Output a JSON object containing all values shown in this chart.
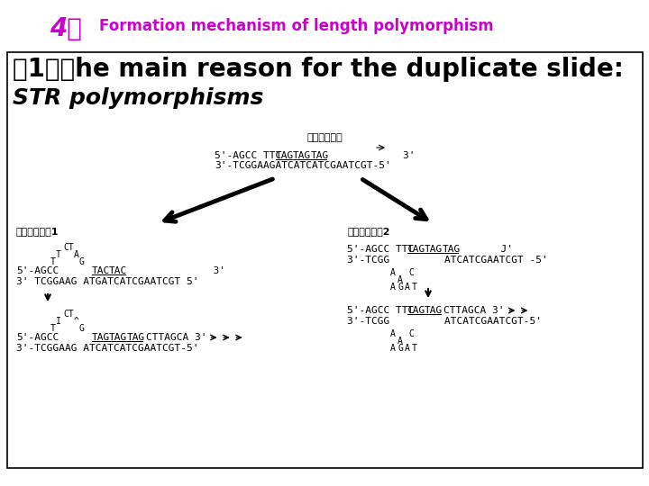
{
  "title_number": "4、",
  "title_text": "Formation mechanism of length polymorphism",
  "title_color": "#cc00cc",
  "subtitle": "（1）、he main reason for the duplicate slide:",
  "subtitle2": "STR polymorphisms",
  "bg_color": "#ffffff",
  "text_color": "#000000",
  "normal_label": "正常复制模式",
  "slip1_label": "滑链错配模式1",
  "slip2_label": "滑链错配模式2"
}
